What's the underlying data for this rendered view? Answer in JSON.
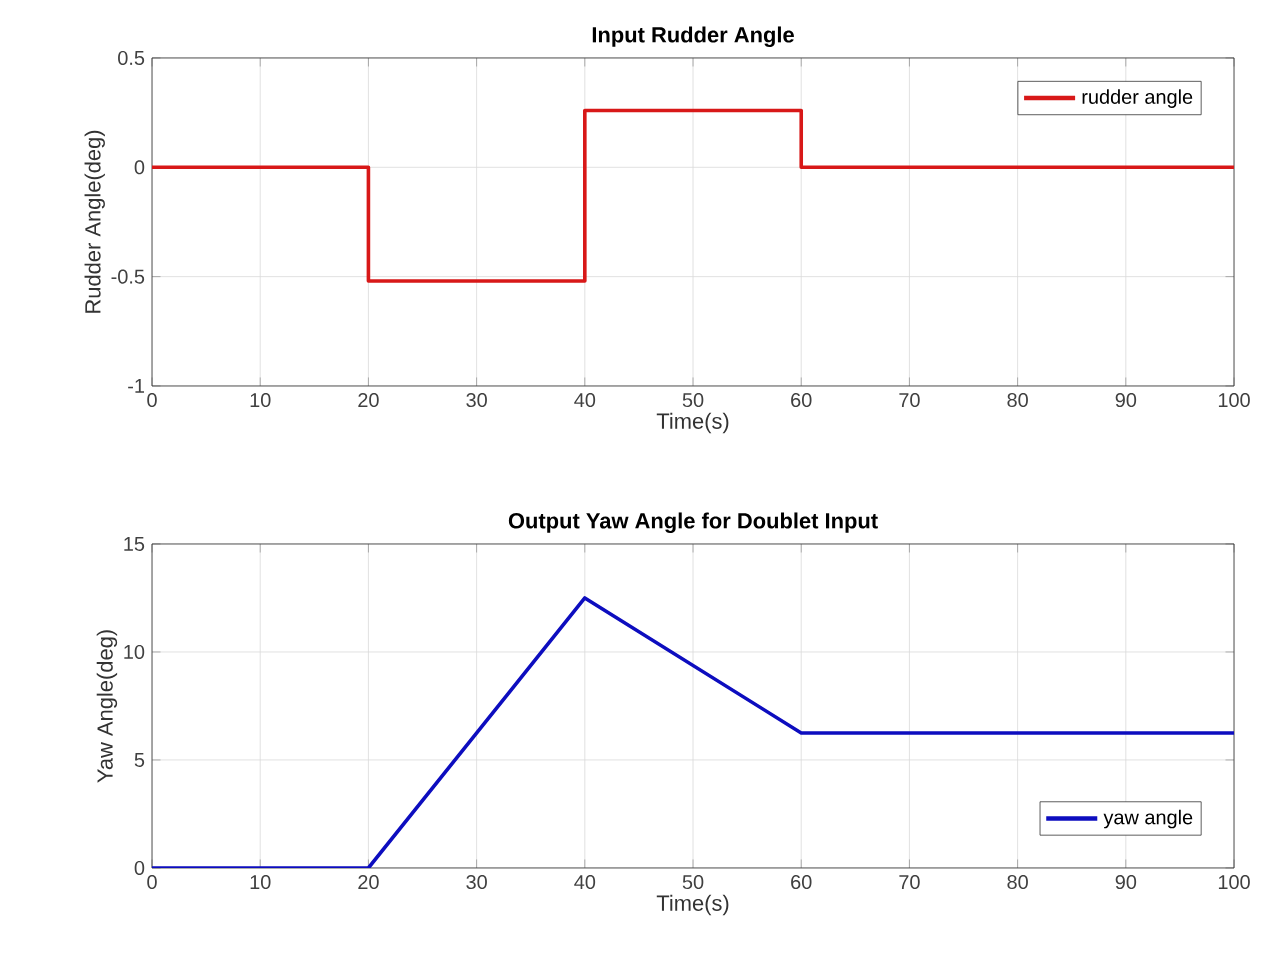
{
  "chart_data": [
    {
      "type": "step",
      "title": "Input Rudder Angle",
      "xlabel": "Time(s)",
      "ylabel": "Rudder Angle(deg)",
      "x": [
        0,
        20,
        40,
        60,
        100
      ],
      "series": [
        {
          "name": "rudder angle",
          "color": "#d81818",
          "values": [
            0,
            -0.52,
            0.26,
            0,
            0
          ]
        }
      ],
      "xlim": [
        0,
        100
      ],
      "xticks": [
        0,
        10,
        20,
        30,
        40,
        50,
        60,
        70,
        80,
        90,
        100
      ],
      "ylim": [
        -1,
        0.5
      ],
      "yticks": [
        -1,
        -0.5,
        0,
        0.5
      ],
      "grid": true,
      "legend": "top right"
    },
    {
      "type": "line",
      "title": "Output Yaw Angle for Doublet Input",
      "xlabel": "Time(s)",
      "ylabel": "Yaw Angle(deg)",
      "x": [
        0,
        20,
        40,
        60,
        100
      ],
      "series": [
        {
          "name": "yaw angle",
          "color": "#0d0dbf",
          "values": [
            0,
            0,
            12.5,
            6.25,
            6.25
          ]
        }
      ],
      "xlim": [
        0,
        100
      ],
      "xticks": [
        0,
        10,
        20,
        30,
        40,
        50,
        60,
        70,
        80,
        90,
        100
      ],
      "ylim": [
        0,
        15
      ],
      "yticks": [
        0,
        5,
        10,
        15
      ],
      "grid": true,
      "legend": "bottom right"
    }
  ]
}
